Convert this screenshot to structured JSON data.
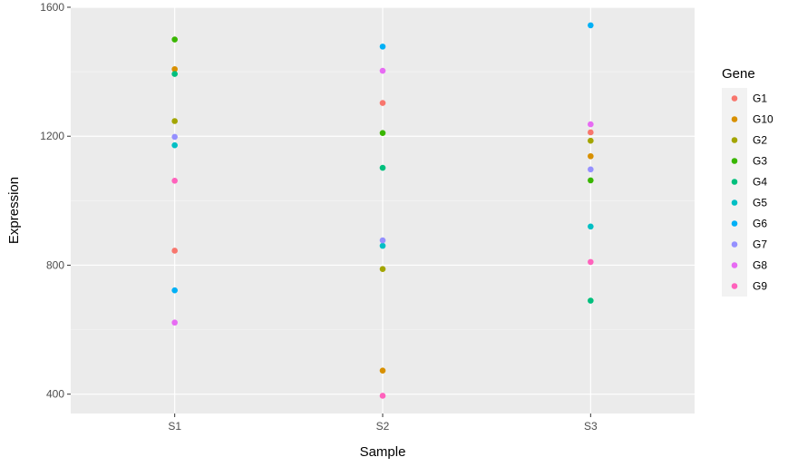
{
  "chart_data": {
    "type": "scatter",
    "xlabel": "Sample",
    "ylabel": "Expression",
    "categories": [
      "S1",
      "S2",
      "S3"
    ],
    "ylim": [
      340,
      1600
    ],
    "yticks": [
      400,
      800,
      1200,
      1600
    ],
    "grid": true,
    "legend": {
      "title": "Gene",
      "placement": "right"
    },
    "series": [
      {
        "name": "G1",
        "color": "#F8766D",
        "values": [
          845,
          1303,
          1212
        ]
      },
      {
        "name": "G10",
        "color": "#D89000",
        "values": [
          1408,
          473,
          1138
        ]
      },
      {
        "name": "G2",
        "color": "#A3A500",
        "values": [
          1247,
          788,
          1186
        ]
      },
      {
        "name": "G3",
        "color": "#39B600",
        "values": [
          1500,
          1210,
          1063
        ]
      },
      {
        "name": "G4",
        "color": "#00BF7D",
        "values": [
          1393,
          1102,
          690
        ]
      },
      {
        "name": "G5",
        "color": "#00BFC4",
        "values": [
          1172,
          860,
          920
        ]
      },
      {
        "name": "G6",
        "color": "#00B0F6",
        "values": [
          722,
          1478,
          1544
        ]
      },
      {
        "name": "G7",
        "color": "#9590FF",
        "values": [
          1198,
          877,
          1097
        ]
      },
      {
        "name": "G8",
        "color": "#E76BF3",
        "values": [
          622,
          1403,
          1237
        ]
      },
      {
        "name": "G9",
        "color": "#FF62BC",
        "values": [
          1062,
          395,
          810
        ]
      }
    ]
  }
}
